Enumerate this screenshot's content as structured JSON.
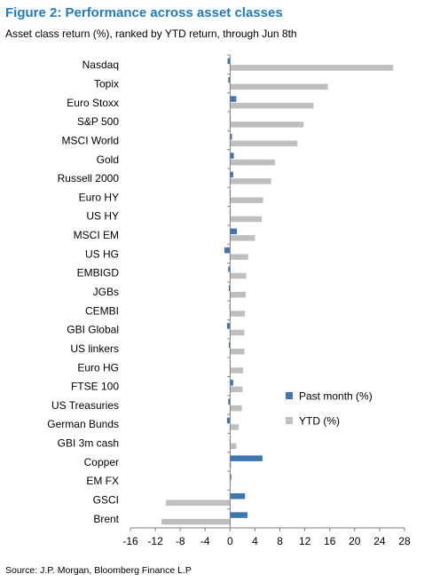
{
  "figure": {
    "title": "Figure 2: Performance across asset classes",
    "subtitle": "Asset class return (%), ranked by YTD return, through Jun 8th",
    "source": "Source: J.P. Morgan, Bloomberg Finance L.P"
  },
  "chart_data": {
    "type": "bar",
    "orientation": "horizontal",
    "categories": [
      "Nasdaq",
      "Topix",
      "Euro Stoxx",
      "S&P 500",
      "MSCI World",
      "Gold",
      "Russell 2000",
      "Euro HY",
      "US HY",
      "MSCI EM",
      "US HG",
      "EMBIGD",
      "JGBs",
      "CEMBI",
      "GBI Global",
      "US linkers",
      "Euro HG",
      "FTSE 100",
      "US Treasuries",
      "German Bunds",
      "GBI 3m cash",
      "Copper",
      "EM FX",
      "GSCI",
      "Brent"
    ],
    "series": [
      {
        "name": "Past month (%)",
        "color": "#3d76b3",
        "values": [
          -0.4,
          -0.3,
          1.0,
          0.1,
          0.3,
          0.6,
          0.5,
          0.1,
          0.1,
          1.1,
          -0.9,
          -0.3,
          -0.2,
          -0.1,
          -0.5,
          -0.2,
          0.0,
          0.5,
          -0.3,
          -0.5,
          0.1,
          5.2,
          0.2,
          2.4,
          2.8
        ]
      },
      {
        "name": "YTD (%)",
        "color": "#bfbfbf",
        "values": [
          26.2,
          15.7,
          13.4,
          11.8,
          10.8,
          7.2,
          6.6,
          5.3,
          5.1,
          4.0,
          2.9,
          2.6,
          2.5,
          2.4,
          2.3,
          2.3,
          2.1,
          2.0,
          1.9,
          1.4,
          1.0,
          0.2,
          0.1,
          -10.3,
          -11.0
        ]
      }
    ],
    "xlim": [
      -16,
      28
    ],
    "xticks": [
      "-16",
      "-12",
      "-8",
      "-4",
      "0",
      "4",
      "8",
      "12",
      "16",
      "20",
      "24",
      "28"
    ],
    "legend_position": "right",
    "grid": false
  }
}
